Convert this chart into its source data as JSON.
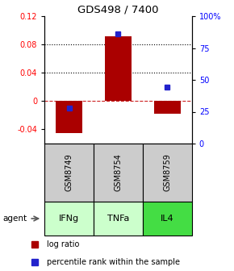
{
  "title": "GDS498 / 7400",
  "samples": [
    "IFNg",
    "TNFa",
    "IL4"
  ],
  "gsm_labels": [
    "GSM8749",
    "GSM8754",
    "GSM8759"
  ],
  "log_ratios": [
    -0.045,
    0.092,
    -0.018
  ],
  "percentile_ranks": [
    0.28,
    0.86,
    0.44
  ],
  "bar_color": "#aa0000",
  "dot_color": "#2222cc",
  "ylim_left": [
    -0.06,
    0.12
  ],
  "ylim_right": [
    0.0,
    1.0
  ],
  "yticks_left": [
    -0.04,
    0.0,
    0.04,
    0.08,
    0.12
  ],
  "ytick_labels_left": [
    "-0.04",
    "0",
    "0.04",
    "0.08",
    "0.12"
  ],
  "yticks_right": [
    0.0,
    0.25,
    0.5,
    0.75,
    1.0
  ],
  "ytick_labels_right": [
    "0",
    "25",
    "50",
    "75",
    "100%"
  ],
  "hlines": [
    0.08,
    0.04,
    0.0
  ],
  "hline_styles": [
    "dotted",
    "dotted",
    "dashed"
  ],
  "hline_colors": [
    "black",
    "black",
    "#cc2222"
  ],
  "agent_colors": [
    "#ccffcc",
    "#ccffcc",
    "#44dd44"
  ],
  "gsm_bg": "#cccccc",
  "agent_label": "agent",
  "legend_log_ratio": "log ratio",
  "legend_percentile": "percentile rank within the sample"
}
